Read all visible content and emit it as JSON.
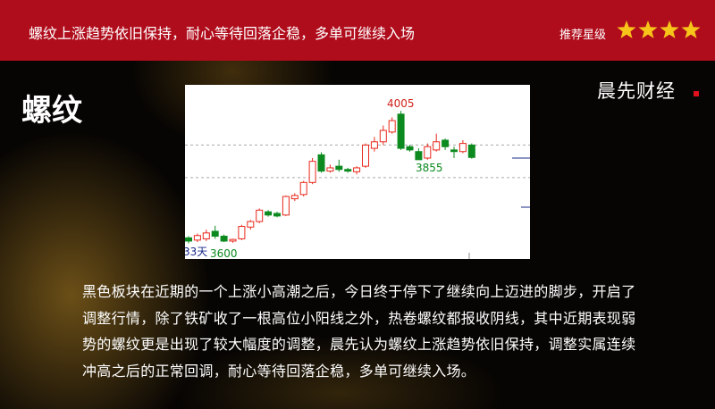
{
  "header": {
    "title": "螺纹上涨趋势依旧保持，耐心等待回落企稳，多单可继续入场",
    "rating_label": "推荐星级",
    "rating": 4
  },
  "brand": "晨先财经",
  "section_title": "螺纹",
  "chart_data": {
    "type": "candlestick",
    "open": [
      3615,
      3608,
      3612,
      3635,
      3620,
      3605,
      3612,
      3648,
      3665,
      3695,
      3690,
      3685,
      3735,
      3748,
      3785,
      3870,
      3820,
      3835,
      3825,
      3818,
      3835,
      3890,
      3910,
      3940,
      3995,
      3895,
      3880,
      3860,
      3885,
      3915,
      3885,
      3880,
      3900
    ],
    "high": [
      3620,
      3628,
      3640,
      3652,
      3625,
      3612,
      3655,
      3670,
      3705,
      3700,
      3695,
      3745,
      3752,
      3790,
      3860,
      3878,
      3840,
      3855,
      3830,
      3835,
      3905,
      3925,
      3960,
      3985,
      4005,
      3900,
      3890,
      3905,
      3935,
      3920,
      3895,
      3915,
      3905
    ],
    "low": [
      3598,
      3602,
      3605,
      3612,
      3602,
      3600,
      3608,
      3640,
      3660,
      3680,
      3678,
      3682,
      3728,
      3742,
      3780,
      3815,
      3815,
      3818,
      3815,
      3810,
      3830,
      3880,
      3900,
      3935,
      3885,
      3880,
      3855,
      3855,
      3880,
      3885,
      3860,
      3875,
      3858
    ],
    "close": [
      3605,
      3622,
      3630,
      3620,
      3605,
      3610,
      3650,
      3665,
      3700,
      3685,
      3682,
      3742,
      3745,
      3785,
      3850,
      3820,
      3830,
      3825,
      3820,
      3830,
      3900,
      3910,
      3945,
      3975,
      3890,
      3885,
      3855,
      3895,
      3910,
      3895,
      3880,
      3905,
      3862
    ],
    "up_color": "#e8291c",
    "down_color": "#0c8a1f",
    "ylim": [
      3550,
      4085
    ],
    "grid_lines": [
      3900,
      3800
    ],
    "annotations": [
      "4005",
      "3855",
      "3600",
      "33天"
    ]
  },
  "body": "黑色板块在近期的一个上涨小高潮之后，今日终于停下了继续向上迈进的脚步，开启了调整行情，除了铁矿收了一根高位小阳线之外，热卷螺纹都报收阴线，其中近期表现弱势的螺纹更是出现了较大幅度的调整，晨先认为螺纹上涨趋势依旧保持，调整实属连续冲高之后的正常回调，耐心等待回落企稳，多单可继续入场。"
}
